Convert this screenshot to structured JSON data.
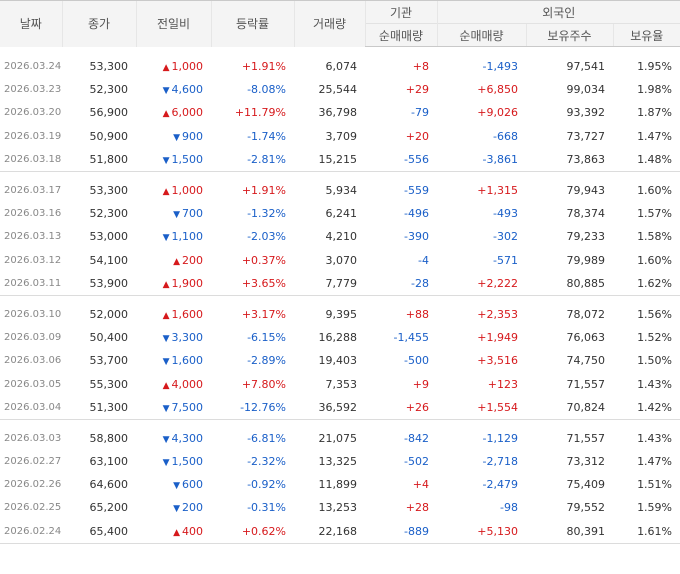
{
  "headers": {
    "date": "날짜",
    "close": "종가",
    "change": "전일비",
    "rate": "등락률",
    "volume": "거래량",
    "institution": "기관",
    "foreign": "외국인",
    "inst_net": "순매매량",
    "foreign_net": "순매매량",
    "foreign_holdings": "보유주수",
    "foreign_ratio": "보유율"
  },
  "colors": {
    "up": "#d6191c",
    "down": "#1a5fc8"
  },
  "icons": {
    "up": "triangle-up-icon",
    "down": "triangle-down-icon"
  },
  "groups": [
    {
      "rows": [
        {
          "date": "2026.03.24",
          "close": "53,300",
          "dir": "up",
          "change": "1,000",
          "rate": "+1.91%",
          "volume": "6,074",
          "inst": "+8",
          "foreign_net": "-1,493",
          "holdings": "97,541",
          "ratio": "1.95%"
        },
        {
          "date": "2026.03.23",
          "close": "52,300",
          "dir": "down",
          "change": "4,600",
          "rate": "-8.08%",
          "volume": "25,544",
          "inst": "+29",
          "foreign_net": "+6,850",
          "holdings": "99,034",
          "ratio": "1.98%"
        },
        {
          "date": "2026.03.20",
          "close": "56,900",
          "dir": "up",
          "change": "6,000",
          "rate": "+11.79%",
          "volume": "36,798",
          "inst": "-79",
          "foreign_net": "+9,026",
          "holdings": "93,392",
          "ratio": "1.87%"
        },
        {
          "date": "2026.03.19",
          "close": "50,900",
          "dir": "down",
          "change": "900",
          "rate": "-1.74%",
          "volume": "3,709",
          "inst": "+20",
          "foreign_net": "-668",
          "holdings": "73,727",
          "ratio": "1.47%"
        },
        {
          "date": "2026.03.18",
          "close": "51,800",
          "dir": "down",
          "change": "1,500",
          "rate": "-2.81%",
          "volume": "15,215",
          "inst": "-556",
          "foreign_net": "-3,861",
          "holdings": "73,863",
          "ratio": "1.48%"
        }
      ]
    },
    {
      "rows": [
        {
          "date": "2026.03.17",
          "close": "53,300",
          "dir": "up",
          "change": "1,000",
          "rate": "+1.91%",
          "volume": "5,934",
          "inst": "-559",
          "foreign_net": "+1,315",
          "holdings": "79,943",
          "ratio": "1.60%"
        },
        {
          "date": "2026.03.16",
          "close": "52,300",
          "dir": "down",
          "change": "700",
          "rate": "-1.32%",
          "volume": "6,241",
          "inst": "-496",
          "foreign_net": "-493",
          "holdings": "78,374",
          "ratio": "1.57%"
        },
        {
          "date": "2026.03.13",
          "close": "53,000",
          "dir": "down",
          "change": "1,100",
          "rate": "-2.03%",
          "volume": "4,210",
          "inst": "-390",
          "foreign_net": "-302",
          "holdings": "79,233",
          "ratio": "1.58%"
        },
        {
          "date": "2026.03.12",
          "close": "54,100",
          "dir": "up",
          "change": "200",
          "rate": "+0.37%",
          "volume": "3,070",
          "inst": "-4",
          "foreign_net": "-571",
          "holdings": "79,989",
          "ratio": "1.60%"
        },
        {
          "date": "2026.03.11",
          "close": "53,900",
          "dir": "up",
          "change": "1,900",
          "rate": "+3.65%",
          "volume": "7,779",
          "inst": "-28",
          "foreign_net": "+2,222",
          "holdings": "80,885",
          "ratio": "1.62%"
        }
      ]
    },
    {
      "rows": [
        {
          "date": "2026.03.10",
          "close": "52,000",
          "dir": "up",
          "change": "1,600",
          "rate": "+3.17%",
          "volume": "9,395",
          "inst": "+88",
          "foreign_net": "+2,353",
          "holdings": "78,072",
          "ratio": "1.56%"
        },
        {
          "date": "2026.03.09",
          "close": "50,400",
          "dir": "down",
          "change": "3,300",
          "rate": "-6.15%",
          "volume": "16,288",
          "inst": "-1,455",
          "foreign_net": "+1,949",
          "holdings": "76,063",
          "ratio": "1.52%"
        },
        {
          "date": "2026.03.06",
          "close": "53,700",
          "dir": "down",
          "change": "1,600",
          "rate": "-2.89%",
          "volume": "19,403",
          "inst": "-500",
          "foreign_net": "+3,516",
          "holdings": "74,750",
          "ratio": "1.50%"
        },
        {
          "date": "2026.03.05",
          "close": "55,300",
          "dir": "up",
          "change": "4,000",
          "rate": "+7.80%",
          "volume": "7,353",
          "inst": "+9",
          "foreign_net": "+123",
          "holdings": "71,557",
          "ratio": "1.43%"
        },
        {
          "date": "2026.03.04",
          "close": "51,300",
          "dir": "down",
          "change": "7,500",
          "rate": "-12.76%",
          "volume": "36,592",
          "inst": "+26",
          "foreign_net": "+1,554",
          "holdings": "70,824",
          "ratio": "1.42%"
        }
      ]
    },
    {
      "rows": [
        {
          "date": "2026.03.03",
          "close": "58,800",
          "dir": "down",
          "change": "4,300",
          "rate": "-6.81%",
          "volume": "21,075",
          "inst": "-842",
          "foreign_net": "-1,129",
          "holdings": "71,557",
          "ratio": "1.43%"
        },
        {
          "date": "2026.02.27",
          "close": "63,100",
          "dir": "down",
          "change": "1,500",
          "rate": "-2.32%",
          "volume": "13,325",
          "inst": "-502",
          "foreign_net": "-2,718",
          "holdings": "73,312",
          "ratio": "1.47%"
        },
        {
          "date": "2026.02.26",
          "close": "64,600",
          "dir": "down",
          "change": "600",
          "rate": "-0.92%",
          "volume": "11,899",
          "inst": "+4",
          "foreign_net": "-2,479",
          "holdings": "75,409",
          "ratio": "1.51%"
        },
        {
          "date": "2026.02.25",
          "close": "65,200",
          "dir": "down",
          "change": "200",
          "rate": "-0.31%",
          "volume": "13,253",
          "inst": "+28",
          "foreign_net": "-98",
          "holdings": "79,552",
          "ratio": "1.59%"
        },
        {
          "date": "2026.02.24",
          "close": "65,400",
          "dir": "up",
          "change": "400",
          "rate": "+0.62%",
          "volume": "22,168",
          "inst": "-889",
          "foreign_net": "+5,130",
          "holdings": "80,391",
          "ratio": "1.61%"
        }
      ]
    }
  ]
}
